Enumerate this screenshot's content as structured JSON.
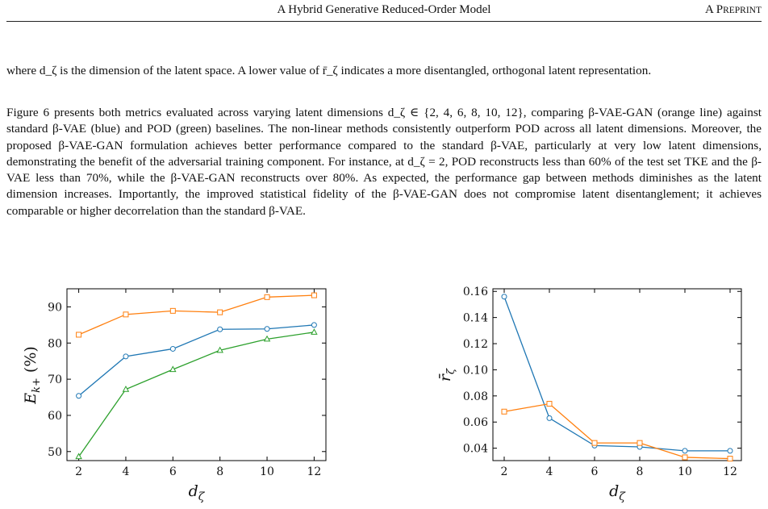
{
  "header": {
    "title": "A Hybrid Generative Reduced-Order Model",
    "right_first": "A P",
    "right_rest": "REPRINT"
  },
  "paragraphs": [
    "where d_ζ is the dimension of the latent space. A lower value of r̄_ζ indicates a more disentangled, orthogonal latent representation.",
    "Figure 6 presents both metrics evaluated across varying latent dimensions d_ζ ∈ {2, 4, 6, 8, 10, 12}, comparing β-VAE-GAN (orange line) against standard β-VAE (blue) and POD (green) baselines. The non-linear methods consistently outperform POD across all latent dimensions. Moreover, the proposed β-VAE-GAN formulation achieves better performance compared to the standard β-VAE, particularly at very low latent dimensions, demonstrating the benefit of the adversarial training component. For instance, at d_ζ = 2, POD reconstructs less than 60% of the test set TKE and the β-VAE less than 70%, while the β-VAE-GAN reconstructs over 80%. As expected, the performance gap between methods diminishes as the latent dimension increases. Importantly, the improved statistical fidelity of the β-VAE-GAN does not compromise latent disentanglement; it achieves comparable or higher decorrelation than the standard β-VAE."
  ],
  "colors": {
    "blue": "#1f77b4",
    "orange": "#ff7f0e",
    "green": "#2ca02c"
  },
  "chart_data": [
    {
      "type": "line",
      "xlabel": "d_ζ",
      "ylabel": "E_k+ (%)",
      "x": [
        2,
        4,
        6,
        8,
        10,
        12
      ],
      "xlim": [
        1.5,
        12.5
      ],
      "ylim": [
        47.5,
        95
      ],
      "xticks": [
        2,
        4,
        6,
        8,
        10,
        12
      ],
      "yticks": [
        50,
        60,
        70,
        80,
        90
      ],
      "grid": false,
      "series": [
        {
          "color": "#ff7f0e",
          "marker": "square",
          "values": [
            82.3,
            87.9,
            88.9,
            88.5,
            92.7,
            93.2
          ]
        },
        {
          "color": "#1f77b4",
          "marker": "circle",
          "values": [
            65.4,
            76.3,
            78.4,
            83.8,
            83.9,
            85.0
          ]
        },
        {
          "color": "#2ca02c",
          "marker": "triangle",
          "values": [
            48.6,
            67.2,
            72.7,
            78.0,
            81.1,
            83.0
          ]
        }
      ]
    },
    {
      "type": "line",
      "xlabel": "d_ζ",
      "ylabel": "r̄_ζ",
      "x": [
        2,
        4,
        6,
        8,
        10,
        12
      ],
      "xlim": [
        1.5,
        12.5
      ],
      "ylim": [
        0.0305,
        0.162
      ],
      "xticks": [
        2,
        4,
        6,
        8,
        10,
        12
      ],
      "yticks": [
        0.04,
        0.06,
        0.08,
        0.1,
        0.12,
        0.14,
        0.16
      ],
      "grid": false,
      "series": [
        {
          "color": "#1f77b4",
          "marker": "circle",
          "values": [
            0.156,
            0.063,
            0.042,
            0.041,
            0.038,
            0.038
          ]
        },
        {
          "color": "#ff7f0e",
          "marker": "square",
          "values": [
            0.068,
            0.074,
            0.044,
            0.044,
            0.033,
            0.032
          ]
        }
      ]
    }
  ]
}
